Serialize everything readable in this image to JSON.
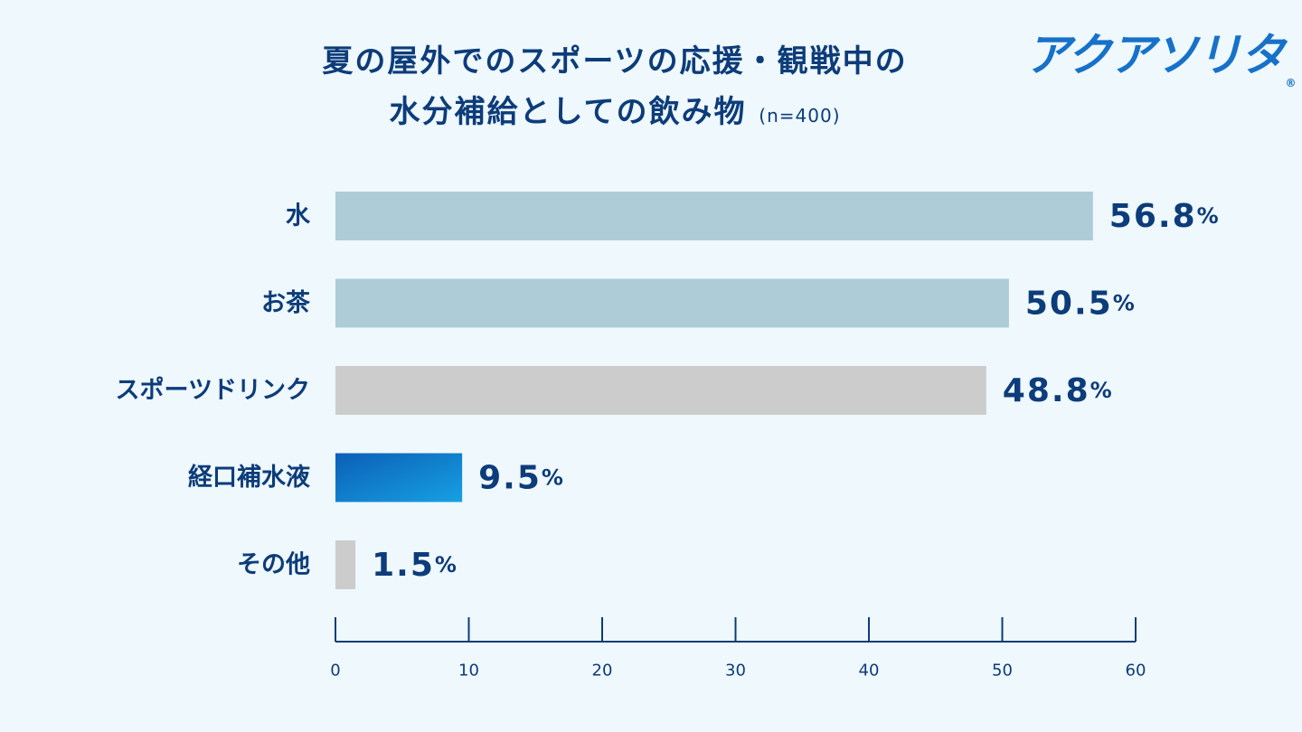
{
  "title": {
    "line1": "夏の屋外でのスポーツの応援・観戦中の",
    "line2": "水分補給としての飲み物",
    "sample": "(n=400)"
  },
  "logo": {
    "text": "アクアソリタ",
    "mark": "®"
  },
  "chart_data": {
    "type": "bar",
    "orientation": "horizontal",
    "categories": [
      "水",
      "お茶",
      "スポーツドリンク",
      "経口補水液",
      "その他"
    ],
    "values": [
      56.8,
      50.5,
      48.8,
      9.5,
      1.5
    ],
    "value_labels": [
      "56.8",
      "50.5",
      "48.8",
      "9.5",
      "1.5"
    ],
    "unit": "%",
    "bar_colors": [
      "#aecbd8",
      "#aecbd8",
      "#cccccc",
      "#0c78c8",
      "#cccccc"
    ],
    "xlim": [
      0,
      60
    ],
    "xticks": [
      0,
      10,
      20,
      30,
      40,
      50,
      60
    ],
    "grid": false,
    "legend": "none"
  },
  "colors": {
    "background": "#eef8fd",
    "text": "#0d3c7a",
    "logo": "#1771c9"
  }
}
